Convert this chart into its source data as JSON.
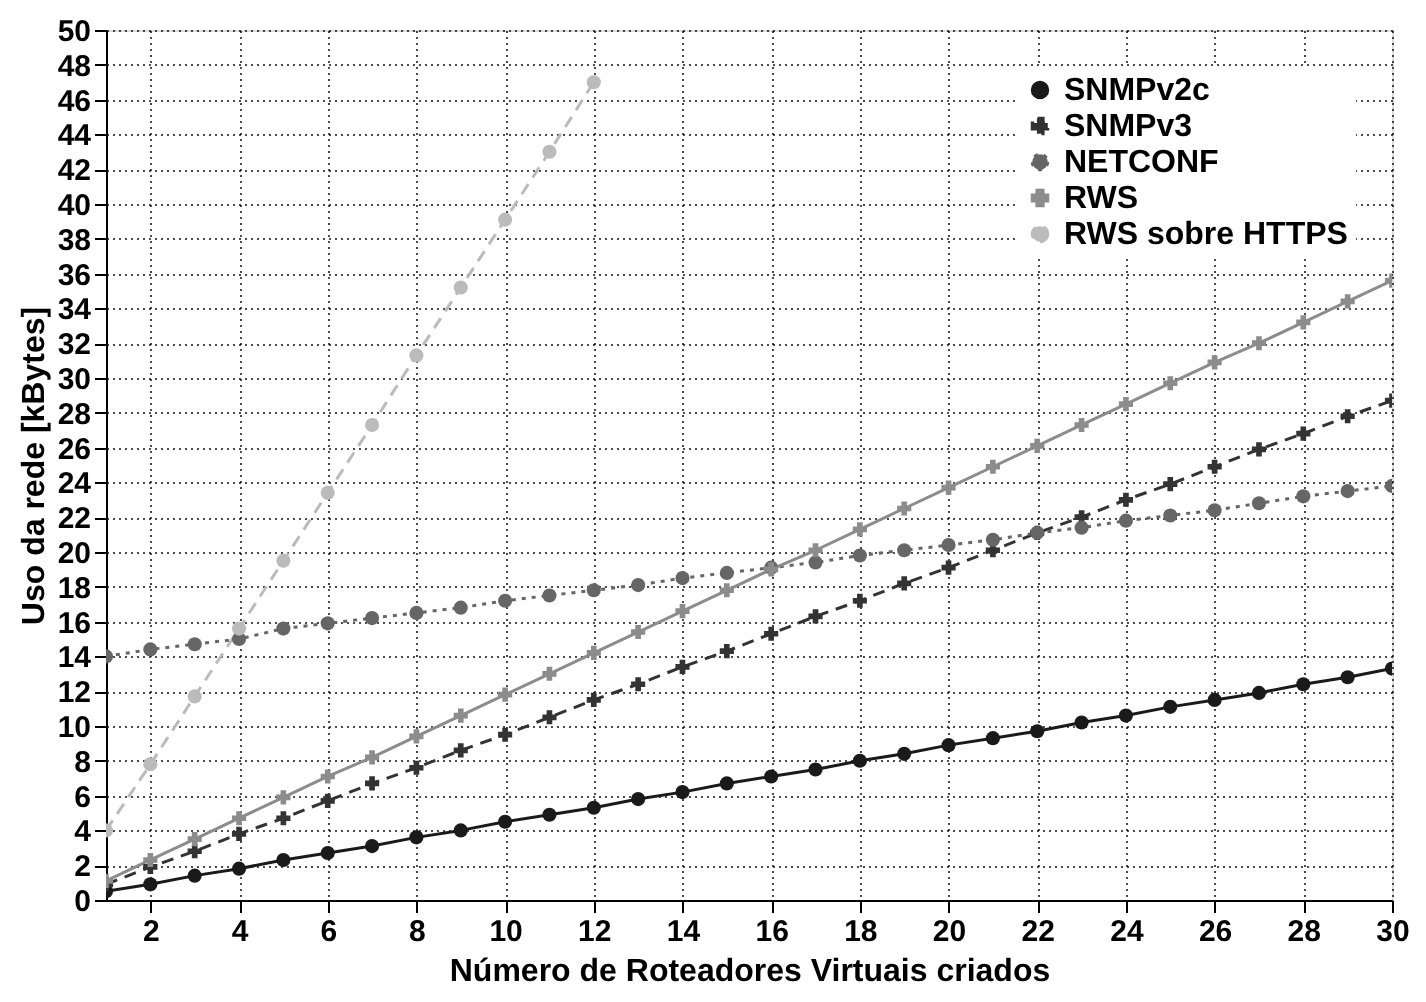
{
  "chart_data": {
    "type": "line",
    "xlabel": "Número de Roteadores Virtuais criados",
    "ylabel": "Uso da rede [kBytes]",
    "x": [
      1,
      2,
      3,
      4,
      5,
      6,
      7,
      8,
      9,
      10,
      11,
      12,
      13,
      14,
      15,
      16,
      17,
      18,
      19,
      20,
      21,
      22,
      23,
      24,
      25,
      26,
      27,
      28,
      29,
      30
    ],
    "xlim": [
      1,
      30
    ],
    "xticks": [
      2,
      4,
      6,
      8,
      10,
      12,
      14,
      16,
      18,
      20,
      22,
      24,
      26,
      28,
      30
    ],
    "ylim": [
      0,
      50
    ],
    "yticks": [
      0,
      2,
      4,
      6,
      8,
      10,
      12,
      14,
      16,
      18,
      20,
      22,
      24,
      26,
      28,
      30,
      32,
      34,
      36,
      38,
      40,
      42,
      44,
      46,
      48,
      50
    ],
    "grid": true,
    "legend": "top right",
    "series": [
      {
        "name": "SNMPv2c",
        "color": "#1a1a1a",
        "marker": "circle",
        "line_style": "solid",
        "values": [
          0.5,
          0.9,
          1.4,
          1.8,
          2.3,
          2.7,
          3.1,
          3.6,
          4.0,
          4.5,
          4.9,
          5.3,
          5.8,
          6.2,
          6.7,
          7.1,
          7.5,
          8.0,
          8.4,
          8.9,
          9.3,
          9.7,
          10.2,
          10.6,
          11.1,
          11.5,
          11.9,
          12.4,
          12.8,
          13.3
        ]
      },
      {
        "name": "SNMPv3",
        "color": "#333333",
        "marker": "cross",
        "line_style": "dashed",
        "values": [
          0.9,
          1.9,
          2.8,
          3.8,
          4.7,
          5.7,
          6.7,
          7.6,
          8.6,
          9.5,
          10.5,
          11.5,
          12.4,
          13.4,
          14.3,
          15.3,
          16.3,
          17.2,
          18.2,
          19.1,
          20.1,
          21.1,
          22.0,
          23.0,
          23.9,
          24.9,
          25.9,
          26.8,
          27.8,
          28.7
        ]
      },
      {
        "name": "NETCONF",
        "color": "#666666",
        "marker": "circle",
        "line_style": "dotted",
        "values": [
          14.0,
          14.4,
          14.7,
          15.0,
          15.6,
          15.9,
          16.2,
          16.5,
          16.8,
          17.2,
          17.5,
          17.8,
          18.1,
          18.5,
          18.8,
          19.1,
          19.4,
          19.8,
          20.1,
          20.4,
          20.7,
          21.1,
          21.4,
          21.8,
          22.1,
          22.4,
          22.8,
          23.2,
          23.5,
          23.8
        ]
      },
      {
        "name": "RWS",
        "color": "#8c8c8c",
        "marker": "cross",
        "line_style": "solid",
        "values": [
          1.1,
          2.3,
          3.5,
          4.7,
          5.9,
          7.1,
          8.2,
          9.4,
          10.6,
          11.8,
          13.0,
          14.2,
          15.4,
          16.6,
          17.8,
          19.0,
          20.1,
          21.3,
          22.5,
          23.7,
          24.9,
          26.1,
          27.3,
          28.5,
          29.7,
          30.9,
          32.0,
          33.2,
          34.4,
          35.6
        ]
      },
      {
        "name": "RWS sobre HTTPS",
        "color": "#bbbbbb",
        "marker": "circle",
        "line_style": "dashed",
        "x": [
          1,
          2,
          3,
          4,
          5,
          6,
          7,
          8,
          9,
          10,
          11,
          12
        ],
        "values": [
          4.0,
          7.8,
          11.7,
          15.6,
          19.5,
          23.4,
          27.3,
          31.3,
          35.2,
          39.1,
          43.0,
          47.0
        ]
      }
    ]
  }
}
